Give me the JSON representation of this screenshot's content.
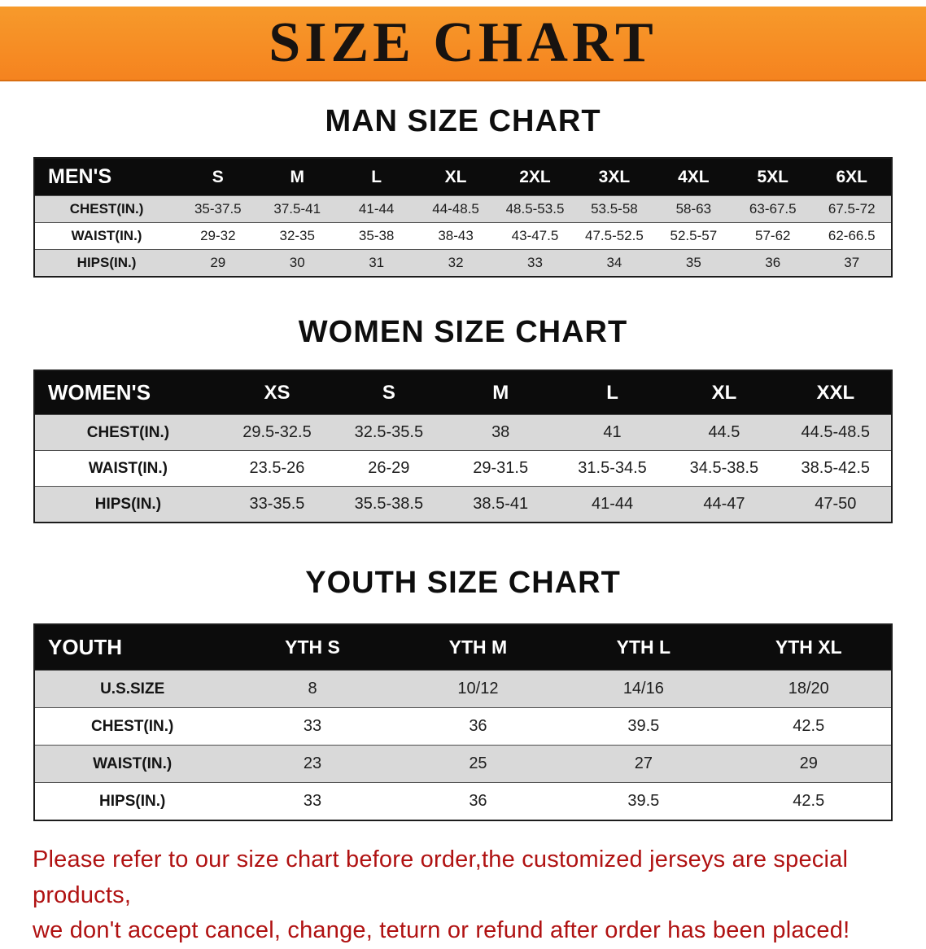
{
  "banner": {
    "title": "SIZE CHART",
    "bg_color": "#f5831f",
    "text_color": "#181310"
  },
  "sections": [
    {
      "id": "men",
      "heading": "MAN SIZE CHART",
      "table": {
        "header": [
          "MEN'S",
          "S",
          "M",
          "L",
          "XL",
          "2XL",
          "3XL",
          "4XL",
          "5XL",
          "6XL"
        ],
        "rows": [
          [
            "CHEST(IN.)",
            "35-37.5",
            "37.5-41",
            "41-44",
            "44-48.5",
            "48.5-53.5",
            "53.5-58",
            "58-63",
            "63-67.5",
            "67.5-72"
          ],
          [
            "WAIST(IN.)",
            "29-32",
            "32-35",
            "35-38",
            "38-43",
            "43-47.5",
            "47.5-52.5",
            "52.5-57",
            "57-62",
            "62-66.5"
          ],
          [
            "HIPS(IN.)",
            "29",
            "30",
            "31",
            "32",
            "33",
            "34",
            "35",
            "36",
            "37"
          ]
        ]
      }
    },
    {
      "id": "women",
      "heading": "WOMEN SIZE CHART",
      "table": {
        "header": [
          "WOMEN'S",
          "XS",
          "S",
          "M",
          "L",
          "XL",
          "XXL"
        ],
        "rows": [
          [
            "CHEST(IN.)",
            "29.5-32.5",
            "32.5-35.5",
            "38",
            "41",
            "44.5",
            "44.5-48.5"
          ],
          [
            "WAIST(IN.)",
            "23.5-26",
            "26-29",
            "29-31.5",
            "31.5-34.5",
            "34.5-38.5",
            "38.5-42.5"
          ],
          [
            "HIPS(IN.)",
            "33-35.5",
            "35.5-38.5",
            "38.5-41",
            "41-44",
            "44-47",
            "47-50"
          ]
        ]
      }
    },
    {
      "id": "youth",
      "heading": "YOUTH SIZE CHART",
      "table": {
        "header": [
          "YOUTH",
          "YTH S",
          "YTH M",
          "YTH L",
          "YTH XL"
        ],
        "rows": [
          [
            "U.S.SIZE",
            "8",
            "10/12",
            "14/16",
            "18/20"
          ],
          [
            "CHEST(IN.)",
            "33",
            "36",
            "39.5",
            "42.5"
          ],
          [
            "WAIST(IN.)",
            "23",
            "25",
            "27",
            "29"
          ],
          [
            "HIPS(IN.)",
            "33",
            "36",
            "39.5",
            "42.5"
          ]
        ]
      }
    }
  ],
  "footer": {
    "color": "#b01212",
    "lines": [
      "Please refer to our size chart before order,the customized jerseys are special products,",
      "we don't accept cancel, change, teturn or refund after order has been placed!"
    ]
  }
}
